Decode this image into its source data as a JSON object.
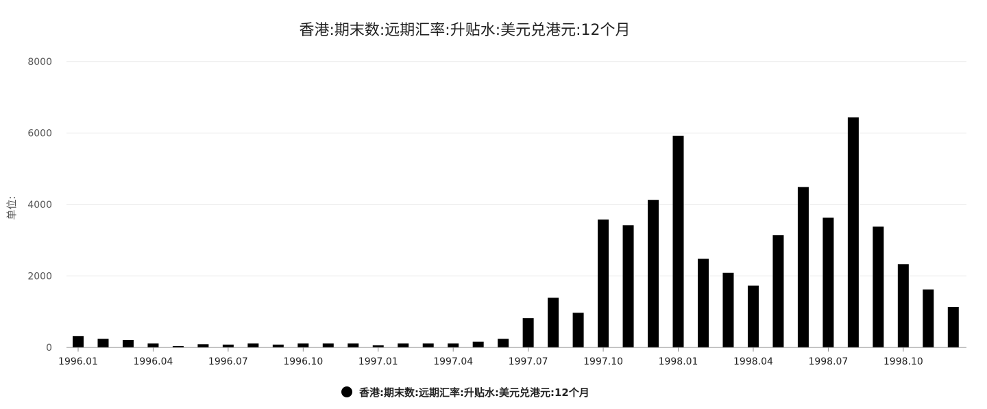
{
  "chart_data": {
    "type": "bar",
    "title": "香港:期末数:远期汇率:升贴水:美元兑港元:12个月",
    "ylabel": "单位:",
    "xlabel": "",
    "ylim": [
      0,
      8000
    ],
    "y_ticks": [
      0,
      2000,
      4000,
      6000,
      8000
    ],
    "x_tick_labels": [
      "1996.01",
      "1996.04",
      "1996.07",
      "1996.10",
      "1997.01",
      "1997.04",
      "1997.07",
      "1997.10",
      "1998.01",
      "1998.04",
      "1998.07",
      "1998.10"
    ],
    "legend_position": "bottom-center",
    "grid": true,
    "colors": {
      "bar": "#000000",
      "grid": "#e6e6e6",
      "axis": "#888888"
    },
    "categories": [
      "1996.01",
      "1996.02",
      "1996.03",
      "1996.04",
      "1996.05",
      "1996.06",
      "1996.07",
      "1996.08",
      "1996.09",
      "1996.10",
      "1996.11",
      "1996.12",
      "1997.01",
      "1997.02",
      "1997.03",
      "1997.04",
      "1997.05",
      "1997.06",
      "1997.07",
      "1997.08",
      "1997.09",
      "1997.10",
      "1997.11",
      "1997.12",
      "1998.01",
      "1998.02",
      "1998.03",
      "1998.04",
      "1998.05",
      "1998.06",
      "1998.07",
      "1998.08",
      "1998.09",
      "1998.10",
      "1998.11",
      "1998.12"
    ],
    "series": [
      {
        "name": "香港:期末数:远期汇率:升贴水:美元兑港元:12个月",
        "values": [
          320,
          240,
          210,
          110,
          40,
          90,
          80,
          110,
          80,
          110,
          110,
          110,
          60,
          110,
          110,
          110,
          160,
          240,
          820,
          1390,
          970,
          3580,
          3420,
          4130,
          5920,
          2480,
          2090,
          1730,
          3140,
          4490,
          3630,
          6440,
          3380,
          2330,
          1620,
          1130
        ]
      }
    ]
  }
}
